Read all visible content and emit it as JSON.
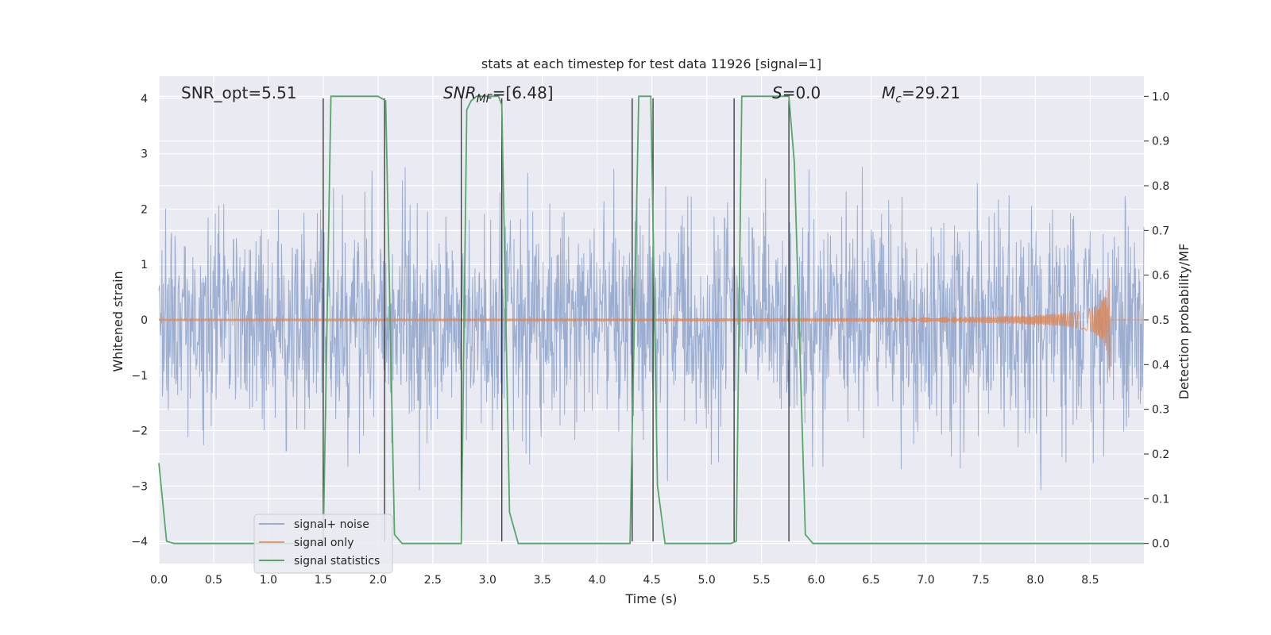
{
  "chart_data": {
    "type": "line",
    "title": "stats at each timestep for test data 11926 [signal=1]",
    "xlabel": "Time (s)",
    "ylabel": "Whitened strain",
    "ylabel_right": "Detection probability/MF",
    "xlim": [
      0,
      8.99
    ],
    "ylim": [
      -4.4,
      4.4
    ],
    "ylim_right": [
      -0.045,
      1.045
    ],
    "x_ticks": [
      "0.0",
      "0.5",
      "1.0",
      "1.5",
      "2.0",
      "2.5",
      "3.0",
      "3.5",
      "4.0",
      "4.5",
      "5.0",
      "5.5",
      "6.0",
      "6.5",
      "7.0",
      "7.5",
      "8.0",
      "8.5"
    ],
    "y_ticks": [
      "4",
      "3",
      "2",
      "1",
      "0",
      "−1",
      "−2",
      "−3",
      "−4"
    ],
    "y_right_ticks": [
      "1.0",
      "0.9",
      "0.8",
      "0.7",
      "0.6",
      "0.5",
      "0.4",
      "0.3",
      "0.2",
      "0.1",
      "0.0"
    ],
    "grid": true,
    "legend_position": "lower-left",
    "colors": {
      "noise": "#4c72b0",
      "signal": "#dd8452",
      "stats": "#55a868",
      "vlines": "#333333",
      "background": "#eaeaf2"
    },
    "annotations": {
      "snr_opt": "SNR_opt=5.51",
      "snr_mf_main": "SNR",
      "snr_mf_sub": "MF",
      "snr_mf_val": "=[6.48]",
      "s_main": "S",
      "s_val": "=0.0",
      "mc_main": "M",
      "mc_sub": "c",
      "mc_val": "=29.21"
    },
    "series": [
      {
        "name": "signal+ noise",
        "amplitude_note": "noisy strain, mostly within ±2, peaks near ±3.5"
      },
      {
        "name": "signal only",
        "chirp_end_time": 8.68,
        "chirp_peak_amplitude": 1.3
      },
      {
        "name": "signal statistics",
        "x": [
          0.0,
          0.07,
          0.14,
          1.5,
          1.57,
          2.0,
          2.07,
          2.15,
          2.22,
          2.76,
          2.81,
          2.85,
          2.9,
          3.1,
          3.13,
          3.2,
          3.28,
          3.5,
          4.3,
          4.38,
          4.49,
          4.55,
          4.62,
          5.0,
          5.22,
          5.27,
          5.32,
          5.75,
          5.8,
          5.9,
          5.97,
          8.99
        ],
        "y": [
          0.18,
          0.005,
          0.0,
          0.0,
          1.0,
          1.0,
          0.99,
          0.02,
          0.0,
          0.0,
          0.97,
          0.99,
          1.0,
          1.0,
          0.98,
          0.07,
          0.0,
          0.0,
          0.0,
          1.0,
          1.0,
          0.13,
          0.0,
          0.0,
          0.0,
          0.005,
          1.0,
          1.0,
          0.85,
          0.02,
          0.0,
          0.0
        ]
      }
    ],
    "vlines": [
      1.5,
      2.06,
      2.76,
      3.13,
      4.32,
      4.51,
      5.25,
      5.75
    ]
  },
  "legend": {
    "noise_label": "signal+ noise",
    "signal_label": "signal only",
    "stats_label": "signal statistics"
  }
}
